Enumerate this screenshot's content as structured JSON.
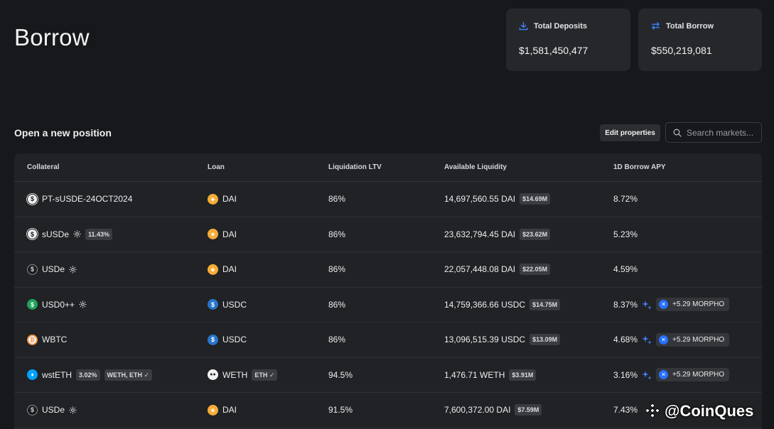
{
  "page": {
    "title": "Borrow"
  },
  "stats": {
    "deposits": {
      "label": "Total Deposits",
      "value": "$1,581,450,477",
      "icon": "download-icon"
    },
    "borrow": {
      "label": "Total Borrow",
      "value": "$550,219,081",
      "icon": "swap-arrows-icon"
    }
  },
  "section": {
    "title": "Open a new position",
    "edit_label": "Edit properties",
    "search_placeholder": "Search markets..."
  },
  "table": {
    "headers": {
      "collateral": "Collateral",
      "loan": "Loan",
      "ltv": "Liquidation LTV",
      "liquidity": "Available Liquidity",
      "apy": "1D Borrow APY"
    },
    "rows": [
      {
        "collateral": "PT-sUSDE-24OCT2024",
        "loan": "DAI",
        "ltv": "86%",
        "liquidity": "14,697,560.55 DAI",
        "liquidity_usd": "$14.69M",
        "apy": "8.72%"
      },
      {
        "collateral": "sUSDe",
        "collateral_badge": "11.43%",
        "loan": "DAI",
        "ltv": "86%",
        "liquidity": "23,632,794.45 DAI",
        "liquidity_usd": "$23.62M",
        "apy": "5.23%"
      },
      {
        "collateral": "USDe",
        "loan": "DAI",
        "ltv": "86%",
        "liquidity": "22,057,448.08 DAI",
        "liquidity_usd": "$22.05M",
        "apy": "4.59%"
      },
      {
        "collateral": "USD0++",
        "loan": "USDC",
        "ltv": "86%",
        "liquidity": "14,759,366.66 USDC",
        "liquidity_usd": "$14.75M",
        "apy": "8.37%",
        "reward": "+5.29 MORPHO"
      },
      {
        "collateral": "WBTC",
        "loan": "USDC",
        "ltv": "86%",
        "liquidity": "13,096,515.39 USDC",
        "liquidity_usd": "$13.09M",
        "apy": "4.68%",
        "reward": "+5.29 MORPHO"
      },
      {
        "collateral": "wstETH",
        "collateral_badge": "3.02%",
        "collateral_badge2": "WETH, ETH",
        "loan": "WETH",
        "loan_badge": "ETH",
        "ltv": "94.5%",
        "liquidity": "1,476.71 WETH",
        "liquidity_usd": "$3.91M",
        "apy": "3.16%",
        "reward": "+5.29 MORPHO"
      },
      {
        "collateral": "USDe",
        "loan": "DAI",
        "ltv": "91.5%",
        "liquidity": "7,600,372.00 DAI",
        "liquidity_usd": "$7.59M",
        "apy": "7.43%"
      }
    ]
  },
  "watermark": {
    "text": "@CoinQues"
  }
}
